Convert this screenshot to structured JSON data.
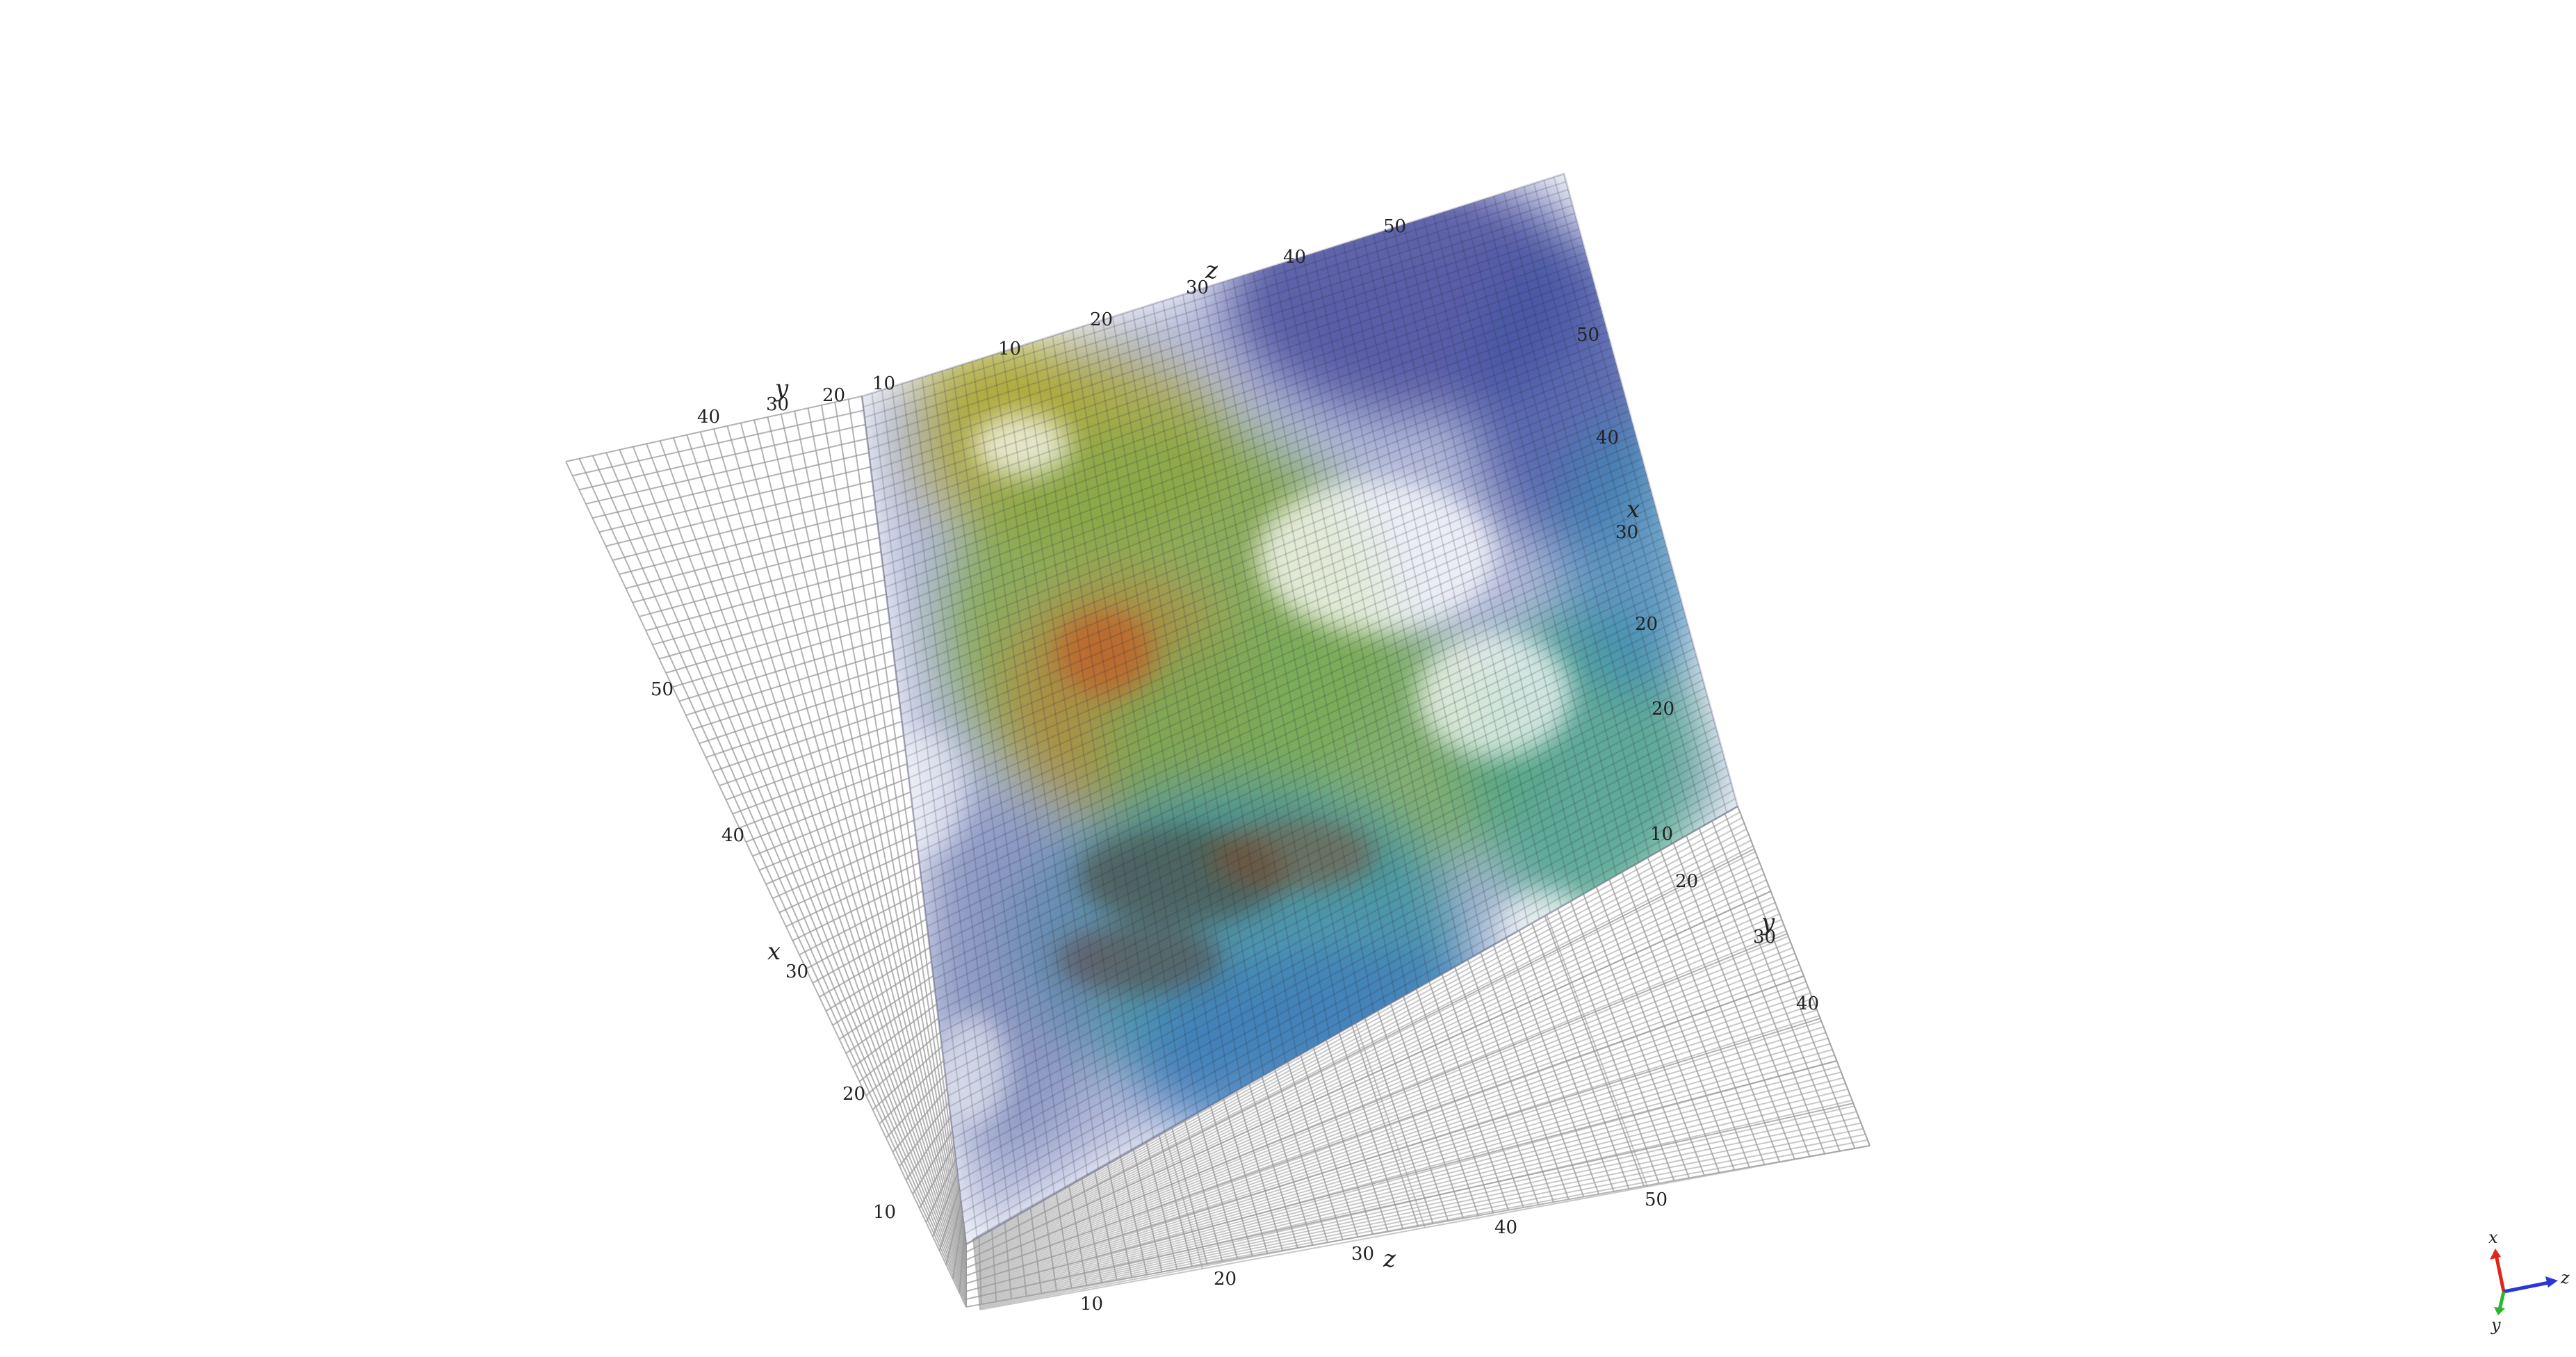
{
  "scene": {
    "type": "3d-volume-render",
    "background": "#ffffff",
    "grid_color": "#9a9a9a",
    "colormap": [
      "#3b3f98",
      "#2f6fb8",
      "#2a9a9a",
      "#5fae4a",
      "#a8a22a",
      "#c0702a",
      "#5a3a2a"
    ]
  },
  "axes": {
    "left_x": {
      "label": "x",
      "ticks": [
        "10",
        "20",
        "30",
        "40",
        "50"
      ]
    },
    "top_y": {
      "label": "y",
      "ticks": [
        "10",
        "20",
        "30",
        "40"
      ]
    },
    "top_z": {
      "label": "z",
      "ticks": [
        "10",
        "20",
        "30",
        "40",
        "50"
      ]
    },
    "right_x": {
      "label": "x",
      "ticks": [
        "10",
        "20",
        "30",
        "40",
        "50"
      ]
    },
    "right_y": {
      "label": "y",
      "ticks": [
        "10",
        "20",
        "30",
        "40"
      ]
    },
    "bottom_z": {
      "label": "z",
      "ticks": [
        "10",
        "20",
        "30",
        "40",
        "50"
      ]
    }
  },
  "orientation_triad": {
    "x": {
      "label": "x",
      "color": "#e0261b"
    },
    "y": {
      "label": "y",
      "color": "#2bb52b"
    },
    "z": {
      "label": "z",
      "color": "#2a36d8"
    }
  }
}
